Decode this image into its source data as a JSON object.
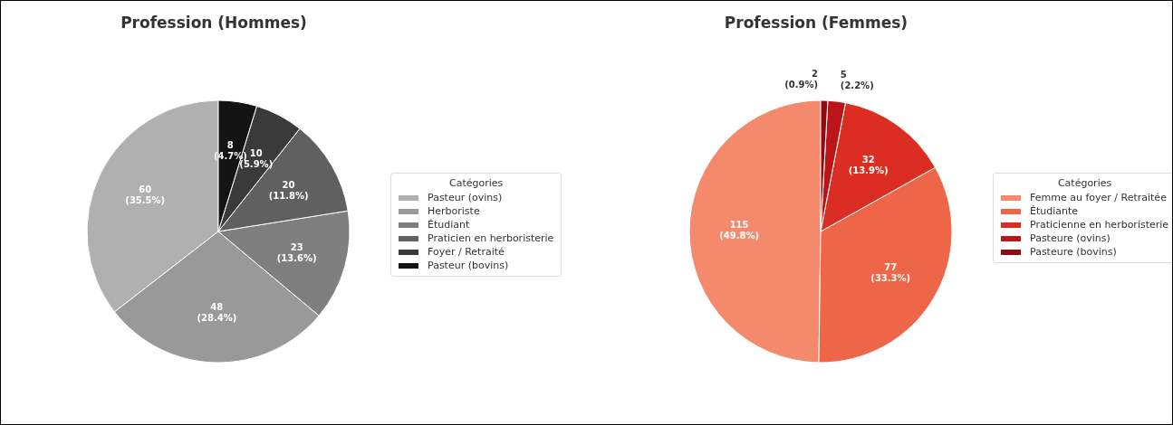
{
  "chart_data": [
    {
      "type": "pie",
      "title": "Profession (Hommes)",
      "legend_title": "Catégories",
      "legend": "right",
      "categories": [
        "Pasteur (ovins)",
        "Herboriste",
        "Étudiant",
        "Praticien en herboristerie",
        "Foyer / Retraité",
        "Pasteur (bovins)"
      ],
      "values": [
        60,
        48,
        23,
        20,
        10,
        8
      ],
      "value_labels": [
        "60\n(35.5%)",
        "48\n(28.4%)",
        "23\n(13.6%)",
        "20\n(11.8%)",
        "10\n(5.9%)",
        "8\n(4.7%)"
      ],
      "colors": [
        "#b0b0b0",
        "#999999",
        "#7f7f7f",
        "#606060",
        "#3a3a3a",
        "#141414"
      ]
    },
    {
      "type": "pie",
      "title": "Profession (Femmes)",
      "legend_title": "Catégories",
      "legend": "right",
      "categories": [
        "Femme au foyer / Retraitée",
        "Étudiante",
        "Praticienne en herboristerie",
        "Pasteure (ovins)",
        "Pasteure (bovins)"
      ],
      "values": [
        115,
        77,
        32,
        5,
        2
      ],
      "value_labels": [
        "115\n(49.8%)",
        "77\n(33.3%)",
        "32\n(13.9%)",
        "5\n(2.2%)",
        "2\n(0.9%)"
      ],
      "colors": [
        "#f4896b",
        "#ef6548",
        "#dc2d22",
        "#bb1419",
        "#8e0c12"
      ]
    }
  ]
}
